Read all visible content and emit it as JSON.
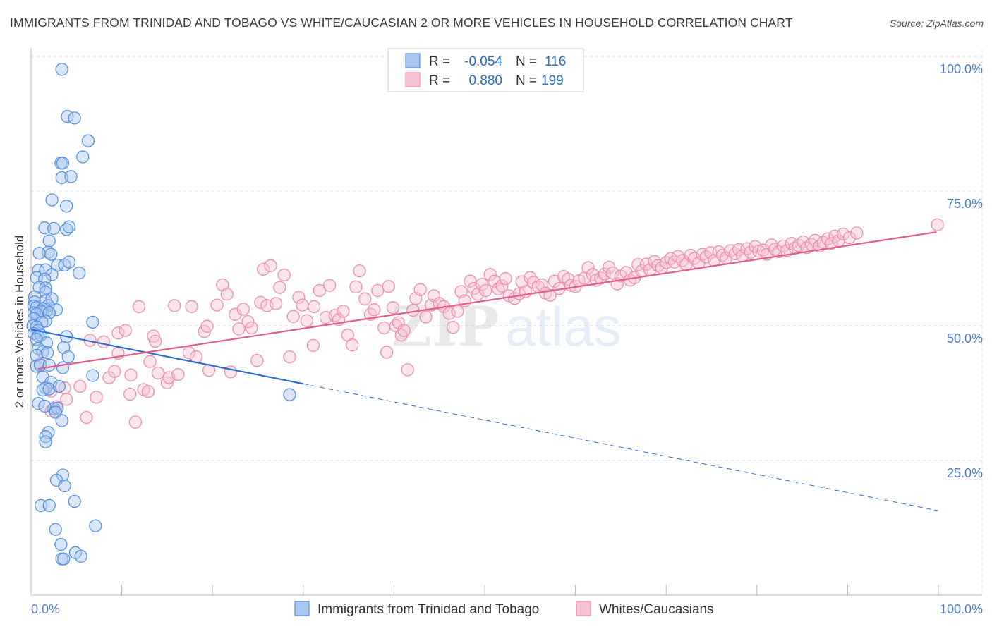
{
  "title": "IMMIGRANTS FROM TRINIDAD AND TOBAGO VS WHITE/CAUCASIAN 2 OR MORE VEHICLES IN HOUSEHOLD CORRELATION CHART",
  "source": "Source: ZipAtlas.com",
  "watermark": {
    "zip": "ZIP",
    "atlas": "atlas"
  },
  "legend": {
    "rows": [
      {
        "r_label": "R =",
        "r_value": "-0.054",
        "n_label": "N =",
        "n_value": "116"
      },
      {
        "r_label": "R =",
        "r_value": "0.880",
        "n_label": "N =",
        "n_value": "199"
      }
    ]
  },
  "bottom_legend": {
    "items": [
      "Immigrants from Trinidad and Tobago",
      "Whites/Caucasians"
    ]
  },
  "colors": {
    "blue": "#5b93e0",
    "blue_fill": "#a9c8f0",
    "blue_line": "#2f6fd1",
    "pink": "#ec8fae",
    "pink_fill": "#f7c3d4",
    "pink_line": "#e45c8a",
    "tick_label": "#4a7fd0",
    "grid": "#d8d8d8"
  },
  "chart_data": {
    "type": "scatter",
    "title": "IMMIGRANTS FROM TRINIDAD AND TOBAGO VS WHITE/CAUCASIAN 2 OR MORE VEHICLES IN HOUSEHOLD CORRELATION CHART",
    "xlabel": "",
    "ylabel": "2 or more Vehicles in Household",
    "x_ticks": [
      "0.0%",
      "100.0%"
    ],
    "y_ticks": [
      "100.0%",
      "75.0%",
      "50.0%",
      "25.0%"
    ],
    "xlim": [
      0,
      100
    ],
    "ylim": [
      -1.5,
      102.5
    ],
    "grid": "horizontal dashed",
    "legend_position": "top-center",
    "series": [
      {
        "name": "Immigrants from Trinidad and Tobago",
        "color": "#5b93e0",
        "r": -0.054,
        "n": 116,
        "trend": {
          "x0": 0,
          "y0": 49.8,
          "x1": 30,
          "y1": 39.3,
          "dashed_to_x": 100,
          "dashed_to_y": 14.8
        },
        "points": [
          [
            3.4,
            100
          ],
          [
            4.0,
            90.9
          ],
          [
            4.8,
            90.6
          ],
          [
            6.3,
            86.2
          ],
          [
            3.3,
            81.9
          ],
          [
            3.5,
            81.9
          ],
          [
            5.7,
            83.1
          ],
          [
            3.4,
            79.1
          ],
          [
            4.4,
            79.3
          ],
          [
            2.3,
            74.8
          ],
          [
            3.9,
            73.6
          ],
          [
            1.5,
            69.4
          ],
          [
            2.5,
            69.3
          ],
          [
            3.9,
            69.1
          ],
          [
            4.2,
            69.6
          ],
          [
            2.0,
            66.9
          ],
          [
            1.9,
            64.7
          ],
          [
            2.2,
            64.3
          ],
          [
            0.9,
            64.5
          ],
          [
            2.9,
            62.2
          ],
          [
            3.7,
            62.2
          ],
          [
            4.2,
            62.8
          ],
          [
            0.8,
            61.2
          ],
          [
            1.6,
            61.3
          ],
          [
            2.3,
            60.4
          ],
          [
            5.3,
            60.7
          ],
          [
            0.6,
            59.8
          ],
          [
            1.5,
            59.5
          ],
          [
            0.9,
            57.9
          ],
          [
            1.6,
            57.8
          ],
          [
            1.6,
            57.0
          ],
          [
            0.4,
            56.1
          ],
          [
            0.4,
            55.1
          ],
          [
            1.6,
            55.3
          ],
          [
            2.3,
            55.7
          ],
          [
            0.3,
            54.3
          ],
          [
            0.6,
            54.0
          ],
          [
            1.9,
            54.4
          ],
          [
            2.8,
            53.6
          ],
          [
            1.3,
            53.8
          ],
          [
            0.3,
            53.0
          ],
          [
            1.3,
            53.1
          ],
          [
            1.7,
            53.4
          ],
          [
            1.1,
            53.3
          ],
          [
            0.6,
            52.8
          ],
          [
            2.0,
            53.0
          ],
          [
            0.3,
            51.9
          ],
          [
            1.6,
            51.4
          ],
          [
            1.2,
            51.2
          ],
          [
            0.2,
            50.5
          ],
          [
            0.6,
            50.3
          ],
          [
            0.8,
            49.6
          ],
          [
            0.3,
            49.0
          ],
          [
            0.8,
            48.5
          ],
          [
            1.1,
            48.7
          ],
          [
            3.9,
            48.4
          ],
          [
            0.6,
            47.9
          ],
          [
            6.8,
            51.2
          ],
          [
            1.7,
            47.2
          ],
          [
            0.8,
            46.1
          ],
          [
            3.6,
            46.3
          ],
          [
            1.3,
            45.5
          ],
          [
            1.8,
            45.3
          ],
          [
            0.6,
            44.8
          ],
          [
            4.1,
            44.5
          ],
          [
            0.6,
            42.7
          ],
          [
            1.0,
            42.9
          ],
          [
            2.0,
            42.9
          ],
          [
            3.5,
            42.4
          ],
          [
            1.3,
            40.6
          ],
          [
            2.2,
            39.6
          ],
          [
            1.6,
            38.5
          ],
          [
            1.3,
            38.1
          ],
          [
            2.0,
            38.3
          ],
          [
            3.1,
            38.8
          ],
          [
            6.8,
            40.9
          ],
          [
            0.8,
            35.5
          ],
          [
            2.5,
            34.5
          ],
          [
            2.9,
            34.6
          ],
          [
            1.5,
            35.0
          ],
          [
            2.7,
            33.8
          ],
          [
            3.4,
            32.2
          ],
          [
            1.9,
            29.9
          ],
          [
            1.6,
            29.1
          ],
          [
            1.6,
            28.1
          ],
          [
            3.5,
            21.7
          ],
          [
            2.8,
            20.7
          ],
          [
            3.7,
            19.6
          ],
          [
            1.1,
            15.8
          ],
          [
            2.0,
            15.8
          ],
          [
            4.8,
            16.6
          ],
          [
            7.1,
            11.9
          ],
          [
            2.7,
            11.2
          ],
          [
            3.3,
            8.3
          ],
          [
            4.9,
            6.7
          ],
          [
            5.5,
            6.0
          ],
          [
            3.4,
            5.5
          ],
          [
            3.6,
            5.5
          ],
          [
            28.5,
            37.2
          ]
        ]
      },
      {
        "name": "Whites/Caucasians",
        "color": "#ec8fae",
        "r": 0.88,
        "n": 199,
        "trend": {
          "x0": 0.8,
          "y0": 42.2,
          "x1": 99.8,
          "y1": 68.6
        },
        "points": [
          [
            1.0,
            43.2
          ],
          [
            3.7,
            38.5
          ],
          [
            2.2,
            37.9
          ],
          [
            2.8,
            34.9
          ],
          [
            2.2,
            34.0
          ],
          [
            3.9,
            36.3
          ],
          [
            5.4,
            38.8
          ],
          [
            6.1,
            32.8
          ],
          [
            6.5,
            47.7
          ],
          [
            7.2,
            36.7
          ],
          [
            8.0,
            47.4
          ],
          [
            8.6,
            40.5
          ],
          [
            9.2,
            41.7
          ],
          [
            9.6,
            49.1
          ],
          [
            9.6,
            45.2
          ],
          [
            10.4,
            49.6
          ],
          [
            10.9,
            37.3
          ],
          [
            11.0,
            41.0
          ],
          [
            11.5,
            31.9
          ],
          [
            11.9,
            54.2
          ],
          [
            12.4,
            38.2
          ],
          [
            12.9,
            37.8
          ],
          [
            13.1,
            43.6
          ],
          [
            13.5,
            48.5
          ],
          [
            13.7,
            47.5
          ],
          [
            14.0,
            41.4
          ],
          [
            15.0,
            39.5
          ],
          [
            15.2,
            40.5
          ],
          [
            15.8,
            54.4
          ],
          [
            16.2,
            41.1
          ],
          [
            17.4,
            45.3
          ],
          [
            17.7,
            54.2
          ],
          [
            18.2,
            44.5
          ],
          [
            19.1,
            49.4
          ],
          [
            19.4,
            50.4
          ],
          [
            19.6,
            41.9
          ],
          [
            20.5,
            54.5
          ],
          [
            21.1,
            58.4
          ],
          [
            21.6,
            56.6
          ],
          [
            22.0,
            41.6
          ],
          [
            22.5,
            52.7
          ],
          [
            22.9,
            49.9
          ],
          [
            23.4,
            53.7
          ],
          [
            23.9,
            51.3
          ],
          [
            24.3,
            50.1
          ],
          [
            24.9,
            43.8
          ],
          [
            25.3,
            55.0
          ],
          [
            25.6,
            61.4
          ],
          [
            26.0,
            54.4
          ],
          [
            26.4,
            62.1
          ],
          [
            27.0,
            54.8
          ],
          [
            27.4,
            57.9
          ],
          [
            27.9,
            60.3
          ],
          [
            28.5,
            44.5
          ],
          [
            28.9,
            52.3
          ],
          [
            29.5,
            56.0
          ],
          [
            29.9,
            54.5
          ],
          [
            30.4,
            51.5
          ],
          [
            31.1,
            46.7
          ],
          [
            31.2,
            54.2
          ],
          [
            31.8,
            57.3
          ],
          [
            32.5,
            52.1
          ],
          [
            32.9,
            58.3
          ],
          [
            33.5,
            52.5
          ],
          [
            33.9,
            51.7
          ],
          [
            34.4,
            53.3
          ],
          [
            34.9,
            48.7
          ],
          [
            35.4,
            46.8
          ],
          [
            35.8,
            58.0
          ],
          [
            36.2,
            61.1
          ],
          [
            36.8,
            55.7
          ],
          [
            37.4,
            52.7
          ],
          [
            37.8,
            53.6
          ],
          [
            38.2,
            57.3
          ],
          [
            38.9,
            50.1
          ],
          [
            39.2,
            45.4
          ],
          [
            39.4,
            58.1
          ],
          [
            39.9,
            54.0
          ],
          [
            40.2,
            50.5
          ],
          [
            40.5,
            51.1
          ],
          [
            40.8,
            48.7
          ],
          [
            41.1,
            49.6
          ],
          [
            41.5,
            42.0
          ],
          [
            42.1,
            53.5
          ],
          [
            42.4,
            55.8
          ],
          [
            42.9,
            57.5
          ],
          [
            43.5,
            52.2
          ],
          [
            44.1,
            54.5
          ],
          [
            44.4,
            56.3
          ],
          [
            45.0,
            54.8
          ],
          [
            45.5,
            54.2
          ],
          [
            46.1,
            52.9
          ],
          [
            46.5,
            50.2
          ],
          [
            47.0,
            53.3
          ],
          [
            47.4,
            57.1
          ],
          [
            47.8,
            55.3
          ],
          [
            48.4,
            59.1
          ],
          [
            48.8,
            57.7
          ],
          [
            49.2,
            56.6
          ],
          [
            49.7,
            58.5
          ],
          [
            50.1,
            57.3
          ],
          [
            50.6,
            60.4
          ],
          [
            51.1,
            59.1
          ],
          [
            51.5,
            57.6
          ],
          [
            51.9,
            58.2
          ],
          [
            52.3,
            59.6
          ],
          [
            52.7,
            56.3
          ],
          [
            53.3,
            55.8
          ],
          [
            53.8,
            56.7
          ],
          [
            54.1,
            59.0
          ],
          [
            54.5,
            57.1
          ],
          [
            55.0,
            59.8
          ],
          [
            55.4,
            58.9
          ],
          [
            55.9,
            58.0
          ],
          [
            56.3,
            58.4
          ],
          [
            56.7,
            56.8
          ],
          [
            57.2,
            56.4
          ],
          [
            57.7,
            59.1
          ],
          [
            58.2,
            57.7
          ],
          [
            58.7,
            60.0
          ],
          [
            59.2,
            59.5
          ],
          [
            59.5,
            58.3
          ],
          [
            60.0,
            58.1
          ],
          [
            60.4,
            59.2
          ],
          [
            61.0,
            59.7
          ],
          [
            61.4,
            61.7
          ],
          [
            61.9,
            60.4
          ],
          [
            62.3,
            59.3
          ],
          [
            62.8,
            59.7
          ],
          [
            63.2,
            60.5
          ],
          [
            63.7,
            61.8
          ],
          [
            64.1,
            60.7
          ],
          [
            64.6,
            58.6
          ],
          [
            65.0,
            60.1
          ],
          [
            65.6,
            60.8
          ],
          [
            66.0,
            59.3
          ],
          [
            66.5,
            59.8
          ],
          [
            66.9,
            62.3
          ],
          [
            67.3,
            61.1
          ],
          [
            67.8,
            62.4
          ],
          [
            68.2,
            61.3
          ],
          [
            68.7,
            62.9
          ],
          [
            69.1,
            62.1
          ],
          [
            69.5,
            61.7
          ],
          [
            70.0,
            62.7
          ],
          [
            70.5,
            63.5
          ],
          [
            70.9,
            62.8
          ],
          [
            71.3,
            63.9
          ],
          [
            71.8,
            63.1
          ],
          [
            72.2,
            62.3
          ],
          [
            72.7,
            64.1
          ],
          [
            73.1,
            63.5
          ],
          [
            73.6,
            62.6
          ],
          [
            74.0,
            64.3
          ],
          [
            74.4,
            63.8
          ],
          [
            74.9,
            64.6
          ],
          [
            75.3,
            63.1
          ],
          [
            75.8,
            64.8
          ],
          [
            76.2,
            64.1
          ],
          [
            76.6,
            63.6
          ],
          [
            77.1,
            65.0
          ],
          [
            77.6,
            64.4
          ],
          [
            78.0,
            65.2
          ],
          [
            78.4,
            64.0
          ],
          [
            78.9,
            65.4
          ],
          [
            79.3,
            64.7
          ],
          [
            79.8,
            65.8
          ],
          [
            80.2,
            64.9
          ],
          [
            80.7,
            65.1
          ],
          [
            81.1,
            64.3
          ],
          [
            81.6,
            66.1
          ],
          [
            82.0,
            65.3
          ],
          [
            82.4,
            64.8
          ],
          [
            82.9,
            65.9
          ],
          [
            83.3,
            65.0
          ],
          [
            83.8,
            66.4
          ],
          [
            84.2,
            65.5
          ],
          [
            84.6,
            66.0
          ],
          [
            85.1,
            66.7
          ],
          [
            85.5,
            65.6
          ],
          [
            86.0,
            66.2
          ],
          [
            86.4,
            67.0
          ],
          [
            86.9,
            65.9
          ],
          [
            87.3,
            66.6
          ],
          [
            87.8,
            67.3
          ],
          [
            88.2,
            66.4
          ],
          [
            88.6,
            67.8
          ],
          [
            89.0,
            66.9
          ],
          [
            89.5,
            68.2
          ],
          [
            90.2,
            67.5
          ],
          [
            91.0,
            68.4
          ],
          [
            99.9,
            70.0
          ]
        ]
      }
    ]
  }
}
